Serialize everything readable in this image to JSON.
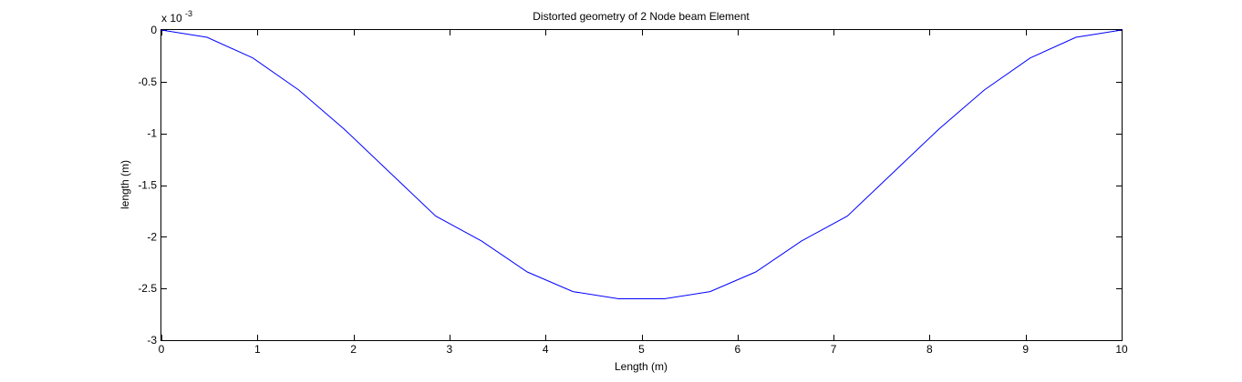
{
  "chart_data": {
    "type": "line",
    "title": "Distorted geometry of 2 Node beam Element",
    "xlabel": "Length (m)",
    "ylabel": "length (m)",
    "y_multiplier_label": "x 10",
    "y_multiplier_exponent": "-3",
    "xlim": [
      0,
      10
    ],
    "ylim": [
      -0.003,
      0
    ],
    "x_ticks": [
      0,
      1,
      2,
      3,
      4,
      5,
      6,
      7,
      8,
      9,
      10
    ],
    "x_tick_labels": [
      "0",
      "1",
      "2",
      "3",
      "4",
      "5",
      "6",
      "7",
      "8",
      "9",
      "10"
    ],
    "y_ticks": [
      0,
      -0.0005,
      -0.001,
      -0.0015,
      -0.002,
      -0.0025,
      -0.003
    ],
    "y_tick_labels": [
      "0",
      "-0.5",
      "-1",
      "-1.5",
      "-2",
      "-2.5",
      "-3"
    ],
    "grid": false,
    "colors": {
      "line": "#0000ff",
      "axes": "#000000",
      "background": "#ffffff"
    },
    "series": [
      {
        "x": [
          0,
          0.476,
          0.952,
          1.429,
          1.905,
          2.381,
          2.857,
          3.333,
          3.81,
          4.286,
          4.762,
          5.238,
          5.714,
          6.19,
          6.667,
          7.143,
          7.619,
          8.095,
          8.571,
          9.048,
          9.524,
          10
        ],
        "y": [
          0,
          -7e-05,
          -0.00027,
          -0.00058,
          -0.00096,
          -0.00138,
          -0.0018,
          -0.00204,
          -0.00234,
          -0.00253,
          -0.0026,
          -0.0026,
          -0.00253,
          -0.00234,
          -0.00204,
          -0.0018,
          -0.00138,
          -0.00096,
          -0.00058,
          -0.00027,
          -7e-05,
          0
        ]
      }
    ]
  }
}
